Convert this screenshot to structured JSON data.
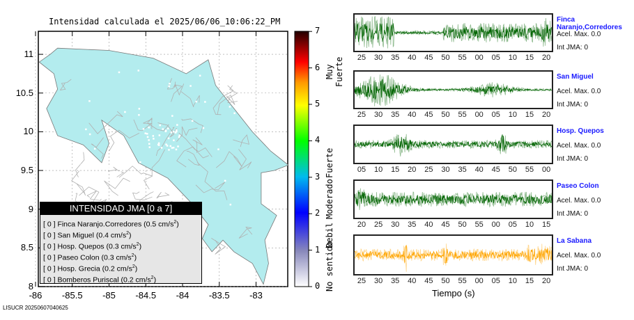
{
  "title": "Intensidad calculada el 2025/06/06_10:06:22_PM",
  "map": {
    "lat_ticks": [
      "8",
      "8.5",
      "9",
      "9.5",
      "10",
      "10.5",
      "11"
    ],
    "lon_ticks": [
      "-86",
      "-85.5",
      "-85",
      "-84.5",
      "-84",
      "-83.5",
      "-83"
    ],
    "land_color": "#b3ecee"
  },
  "colorbar": {
    "values": [
      "0",
      "1",
      "2",
      "3",
      "4",
      "5",
      "6",
      "7"
    ],
    "categories": [
      "No sentido",
      "Debil",
      "Moderado",
      "Fuerte",
      "Muy Fuerte"
    ]
  },
  "legend": {
    "header": "INTENSIDAD JMA [0 a 7]",
    "items": [
      {
        "int": "[ 0 ]",
        "name": "Finca Naranjo.Corredores",
        "acc": "(0.5 cm/s",
        "unit": "2",
        ")": ")"
      },
      {
        "int": "[ 0 ]",
        "name": "San Miguel",
        "acc": "(0.4 cm/s",
        "unit": "2"
      },
      {
        "int": "[ 0 ]",
        "name": "Hosp. Quepos",
        "acc": "(0.3 cm/s",
        "unit": "2"
      },
      {
        "int": "[ 0 ]",
        "name": "Paseo Colon",
        "acc": "(0.3 cm/s",
        "unit": "2"
      },
      {
        "int": "[ 0 ]",
        "name": "Hosp. Grecia",
        "acc": "(0.2 cm/s",
        "unit": "2"
      },
      {
        "int": "[ 0 ]",
        "name": "Bomberos Puriscal",
        "acc": "(0.2 cm/s",
        "unit": "2"
      }
    ]
  },
  "stations": [
    {
      "name": "Finca Naranjo,Corredores",
      "acel": "Acel. Max. 0.0",
      "int": "Int JMA: 0",
      "color": "#006400",
      "ticks": [
        "25",
        "30",
        "35",
        "40",
        "45",
        "50",
        "55",
        "00",
        "05",
        "10",
        "15",
        "20"
      ]
    },
    {
      "name": "San Miguel",
      "acel": "Acel. Max. 0.0",
      "int": "Int JMA: 0",
      "color": "#006400",
      "ticks": [
        "25",
        "30",
        "35",
        "40",
        "45",
        "50",
        "55",
        "00",
        "05",
        "10",
        "15",
        "20"
      ]
    },
    {
      "name": "Hosp. Quepos",
      "acel": "Acel. Max. 0.0",
      "int": "Int JMA: 0",
      "color": "#006400",
      "ticks": [
        "05",
        "10",
        "15",
        "20",
        "25",
        "30",
        "35",
        "40",
        "45",
        "50",
        "55",
        "00"
      ]
    },
    {
      "name": "Paseo Colon",
      "acel": "Acel. Max. 0.0",
      "int": "Int JMA: 0",
      "color": "#006400",
      "ticks": [
        "20",
        "25",
        "30",
        "35",
        "40",
        "45",
        "50",
        "55",
        "00",
        "05",
        "10",
        "15"
      ]
    },
    {
      "name": "La Sabana",
      "acel": "Acel. Max. 0.0",
      "int": "Int JMA: 0",
      "color": "#ffa500",
      "ticks": [
        "25",
        "30",
        "35",
        "40",
        "45",
        "50",
        "55",
        "00",
        "05",
        "10",
        "15",
        "20"
      ]
    }
  ],
  "xlabel": "Tiempo (s)",
  "footer": "LISUCR 20250607040625"
}
